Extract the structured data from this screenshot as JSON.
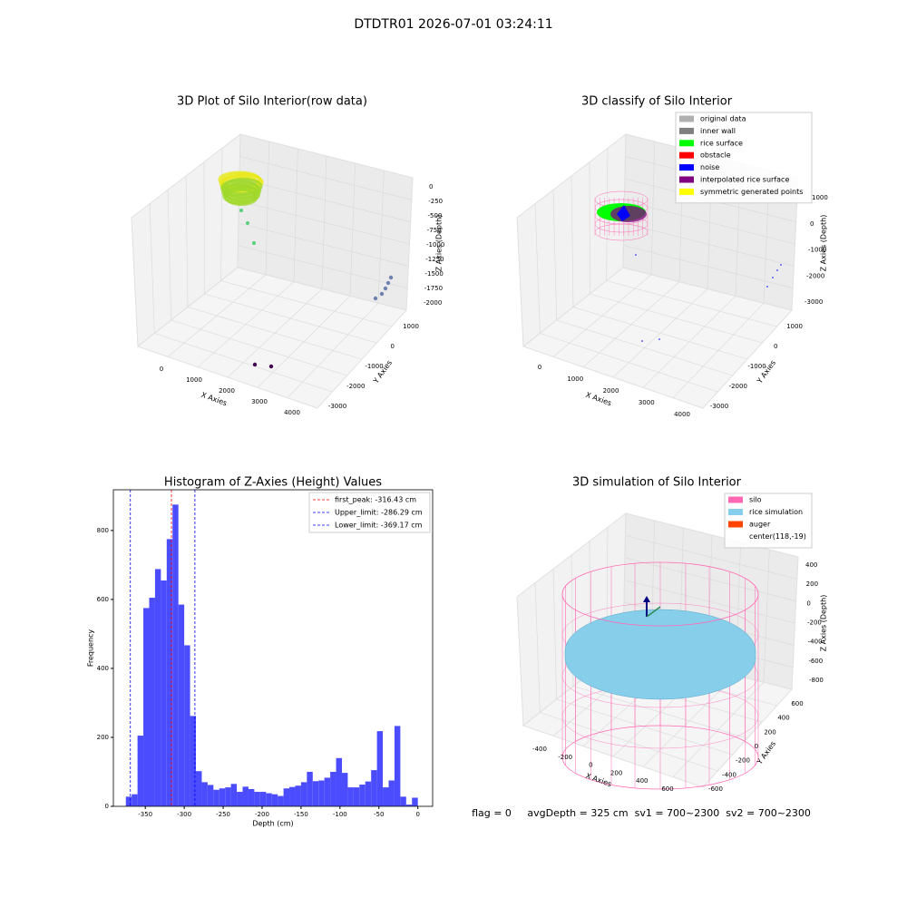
{
  "suptitle": "DTDTR01 2026-07-01 03:24:11",
  "footer": "flag = 0     avgDepth = 325 cm  sv1 = 700~2300  sv2 = 700~2300",
  "chart_data": [
    {
      "type": "scatter3d",
      "title": "3D Plot of Silo Interior(row data)",
      "xlabel": "X Axies",
      "ylabel": "Y Axies",
      "zlabel": "Z Axies (Depth)",
      "xticks": [
        0,
        1000,
        2000,
        3000,
        4000
      ],
      "yticks": [
        1000,
        0,
        -1000,
        -2000,
        -3000
      ],
      "zticks": [
        0,
        -250,
        -500,
        -750,
        -1000,
        -1250,
        -1500,
        -1750,
        -2000
      ]
    },
    {
      "type": "scatter3d",
      "title": "3D classify of Silo Interior",
      "xlabel": "X Axies",
      "ylabel": "Y Axies",
      "zlabel": "Z Axies (Depth)",
      "xticks": [
        0,
        1000,
        2000,
        3000,
        4000
      ],
      "yticks": [
        1000,
        0,
        -1000,
        -2000,
        -3000
      ],
      "zticks": [
        1000,
        0,
        -1000,
        -2000,
        -3000
      ],
      "series": [
        {
          "name": "original data",
          "color": "#b0b0b0"
        },
        {
          "name": "inner wall",
          "color": "#808080"
        },
        {
          "name": "rice surface",
          "color": "#00ff00"
        },
        {
          "name": "obstacle",
          "color": "#ff0000"
        },
        {
          "name": "noise",
          "color": "#0000ff"
        },
        {
          "name": "interpolated rice surface",
          "color": "#800080"
        },
        {
          "name": "symmetric generated points",
          "color": "#ffff00"
        }
      ]
    },
    {
      "type": "surface3d",
      "title": "3D simulation of Silo Interior",
      "xlabel": "X Axies",
      "ylabel": "Y Axies",
      "zlabel": "Z Axies (Depth)",
      "xticks": [
        -400,
        -200,
        0,
        200,
        400,
        600
      ],
      "yticks": [
        600,
        400,
        200,
        0,
        -200,
        -400,
        -600
      ],
      "zticks": [
        400,
        200,
        0,
        -200,
        -400,
        -600,
        -800
      ],
      "series": [
        {
          "name": "silo",
          "color": "#ff69b4"
        },
        {
          "name": "rice simulation",
          "color": "#87ceeb"
        },
        {
          "name": "auger",
          "color": "#ff4500"
        },
        {
          "name": "center(118,-19)"
        }
      ]
    },
    {
      "type": "histogram",
      "title": "Histogram of Z-Axies (Height) Values",
      "xlabel": "Depth (cm)",
      "ylabel": "Frequency",
      "color": "#4c4cff",
      "bins": [
        -375,
        -367.5,
        -360,
        -352.5,
        -345,
        -337.5,
        -330,
        -322.5,
        -315,
        -307.5,
        -300,
        -292.5,
        -285,
        -277.5,
        -270,
        -262.5,
        -255,
        -247.5,
        -240,
        -232.5,
        -225,
        -217.5,
        -210,
        -202.5,
        -195,
        -187.5,
        -180,
        -172.5,
        -165,
        -157.5,
        -150,
        -142.5,
        -135,
        -127.5,
        -120,
        -112.5,
        -105,
        -97.5,
        -90,
        -82.5,
        -75,
        -67.5,
        -60,
        -52.5,
        -45,
        -37.5,
        -30,
        -22.5,
        -15,
        -7.5,
        0
      ],
      "values": [
        28,
        35,
        205,
        575,
        605,
        688,
        655,
        775,
        875,
        585,
        467,
        262,
        102,
        70,
        62,
        48,
        52,
        55,
        65,
        42,
        57,
        50,
        42,
        42,
        38,
        35,
        30,
        52,
        56,
        60,
        70,
        100,
        73,
        75,
        83,
        100,
        140,
        97,
        55,
        55,
        63,
        72,
        105,
        218,
        55,
        75,
        233,
        28,
        5,
        25
      ],
      "xlim": [
        -391,
        19
      ],
      "ylim": [
        0,
        918
      ],
      "xticks": [
        -350,
        -300,
        -250,
        -200,
        -150,
        -100,
        -50,
        0
      ],
      "yticks": [
        0,
        200,
        400,
        600,
        800
      ],
      "vlines": [
        {
          "name": "first_peak: -316.43 cm",
          "value": -316.43,
          "color": "#ff0000"
        },
        {
          "name": "Upper_limit: -286.29 cm",
          "value": -286.29,
          "color": "#0000ff"
        },
        {
          "name": "Lower_limit: -369.17 cm",
          "value": -369.17,
          "color": "#0000ff"
        }
      ]
    }
  ]
}
